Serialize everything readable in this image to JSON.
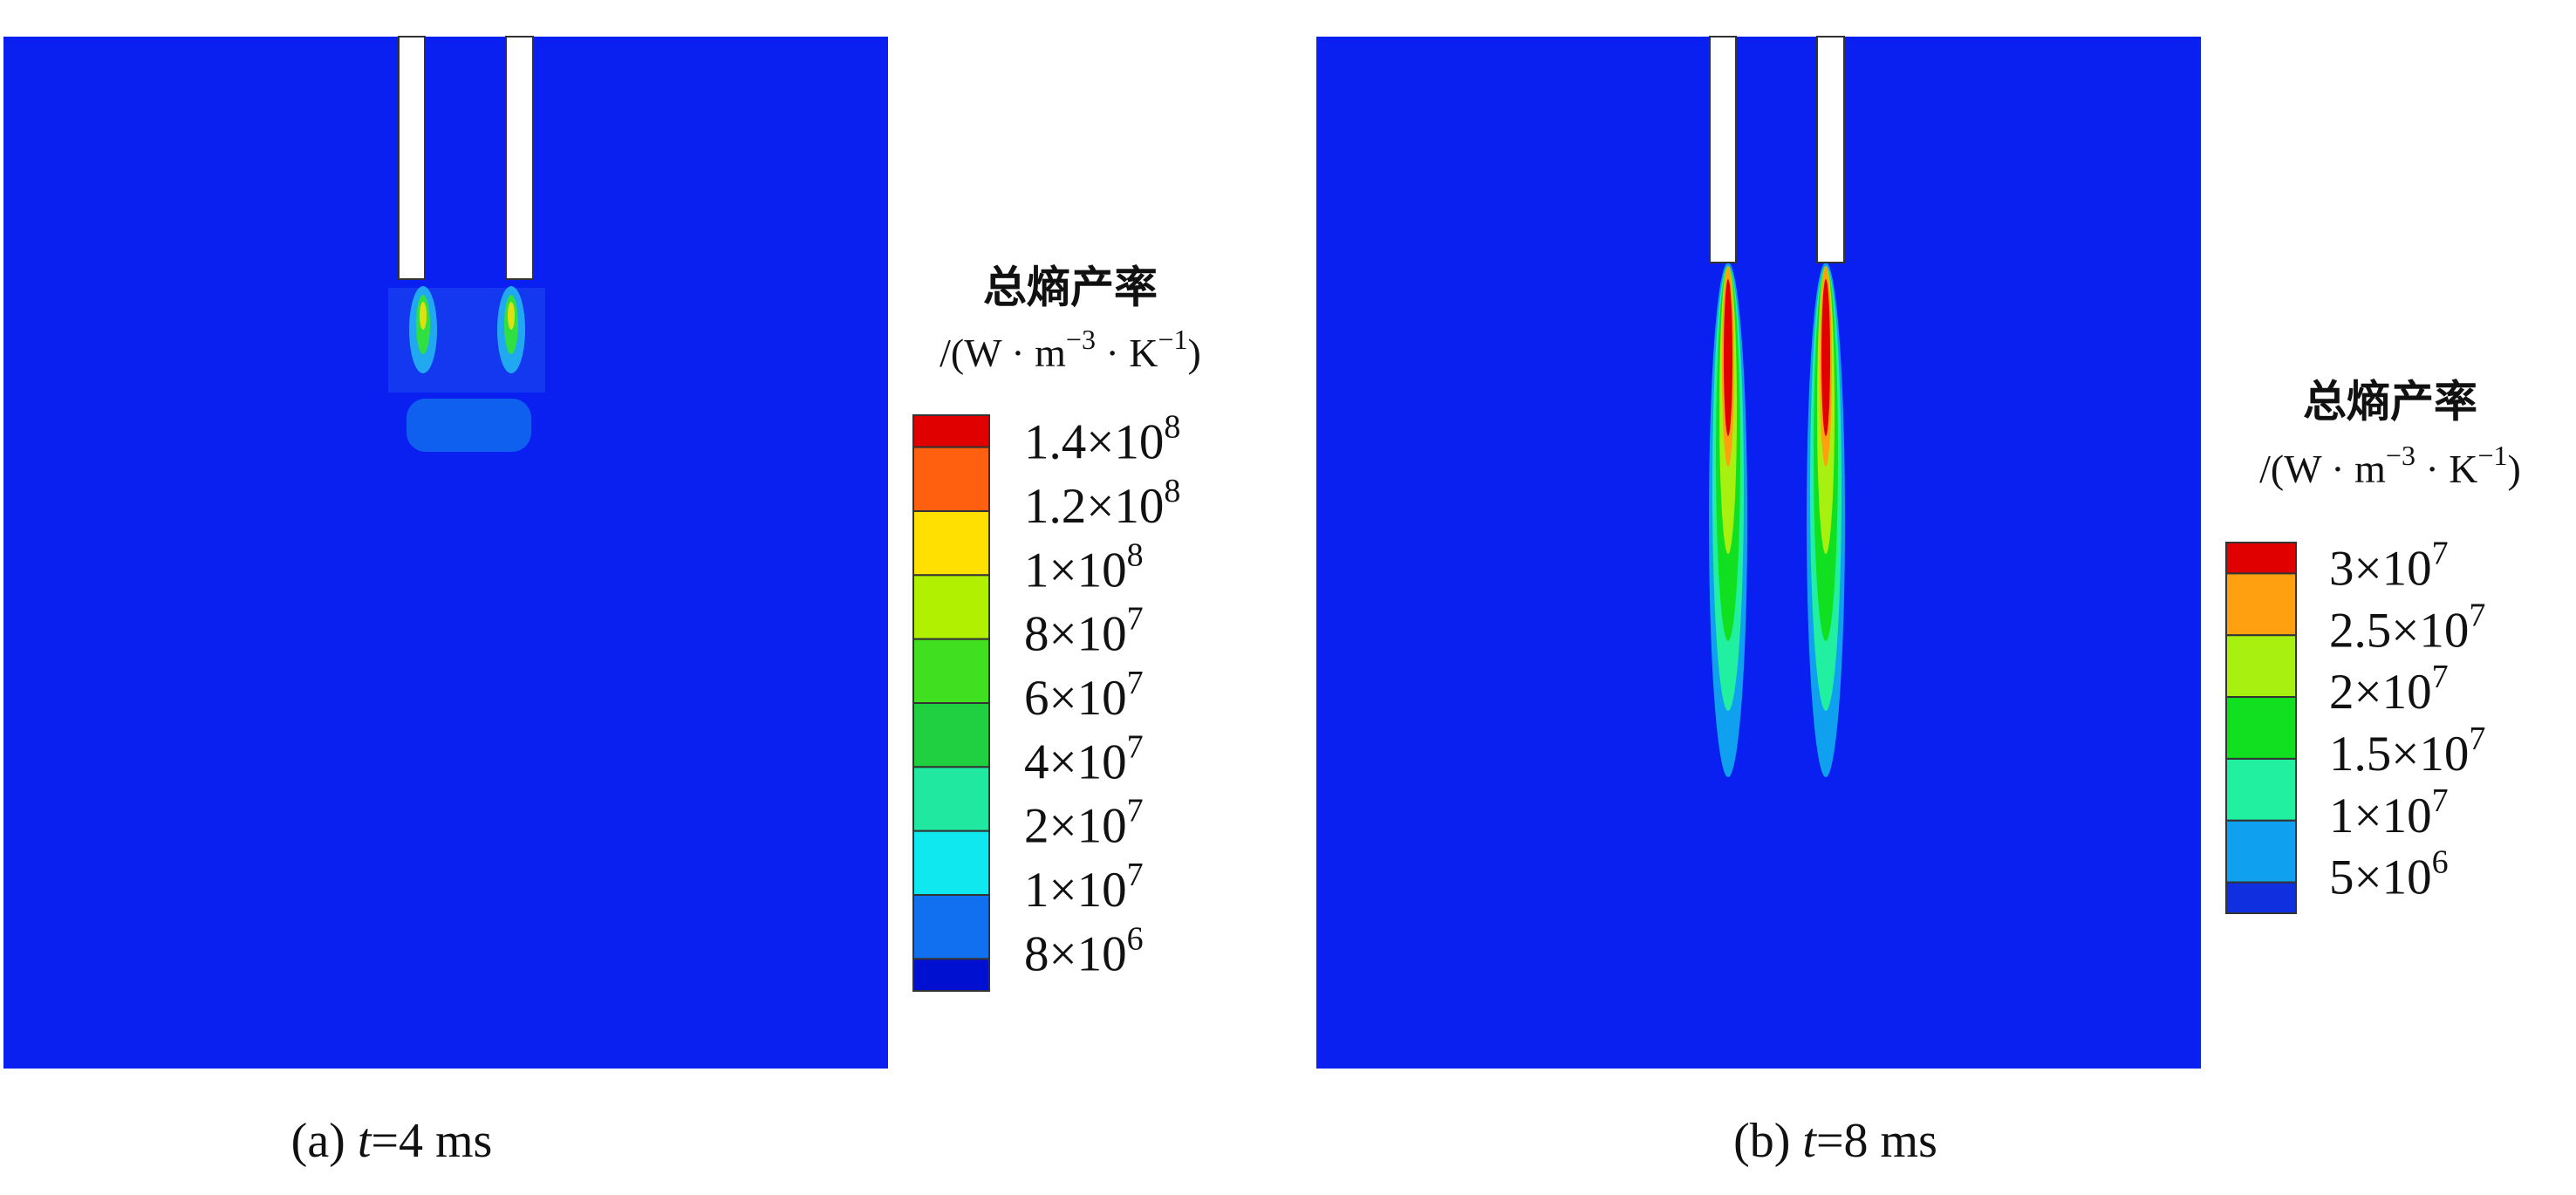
{
  "panels": [
    {
      "caption": {
        "label": "(a) ",
        "var": "t",
        "rest": "=4 ms"
      },
      "legend": {
        "title": "总熵产率",
        "unit": [
          "/(W · m",
          "−3",
          " · K",
          "−1",
          ")"
        ],
        "colors": [
          "#e00000",
          "#ff6010",
          "#ffe000",
          "#b0f000",
          "#40e020",
          "#20d040",
          "#20e8a0",
          "#10e8f0",
          "#1070f0",
          "#0010d0"
        ],
        "labels": [
          {
            "base": "1.4×10",
            "exp": "8"
          },
          {
            "base": "1.2×10",
            "exp": "8"
          },
          {
            "base": "1×10",
            "exp": "8"
          },
          {
            "base": "8×10",
            "exp": "7"
          },
          {
            "base": "6×10",
            "exp": "7"
          },
          {
            "base": "4×10",
            "exp": "7"
          },
          {
            "base": "2×10",
            "exp": "7"
          },
          {
            "base": "1×10",
            "exp": "7"
          },
          {
            "base": "8×10",
            "exp": "6"
          }
        ]
      }
    },
    {
      "caption": {
        "label": "(b) ",
        "var": "t",
        "rest": "=8 ms"
      },
      "legend": {
        "title": "总熵产率",
        "unit": [
          "/(W · m",
          "−3",
          " · K",
          "−1",
          ")"
        ],
        "colors": [
          "#e00000",
          "#ffa010",
          "#a8f010",
          "#10e020",
          "#20f0a0",
          "#10a0f0",
          "#1030e0"
        ],
        "labels": [
          {
            "base": "3×10",
            "exp": "7"
          },
          {
            "base": "2.5×10",
            "exp": "7"
          },
          {
            "base": "2×10",
            "exp": "7"
          },
          {
            "base": "1.5×10",
            "exp": "7"
          },
          {
            "base": "1×10",
            "exp": "7"
          },
          {
            "base": "5×10",
            "exp": "6"
          }
        ]
      }
    }
  ]
}
